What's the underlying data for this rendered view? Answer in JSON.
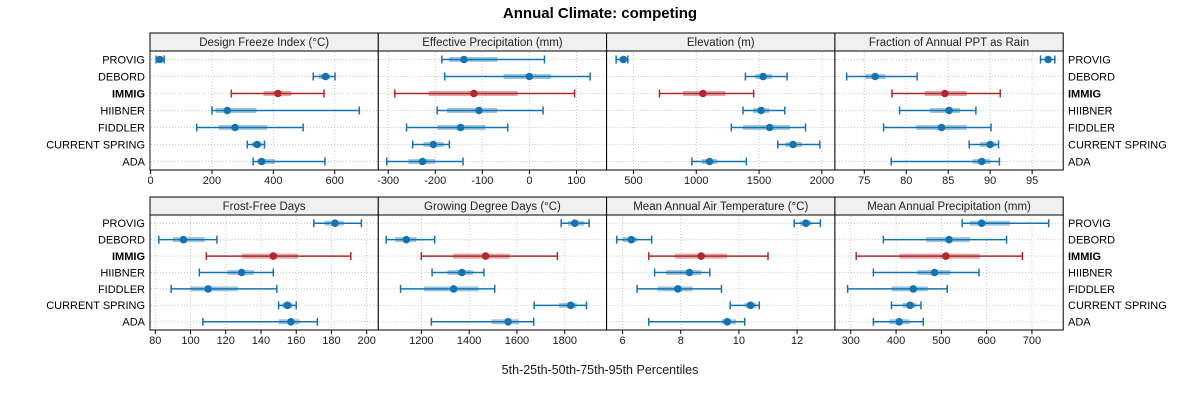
{
  "title": "Annual Climate: competing",
  "xlabel": "5th-25th-50th-75th-95th Percentiles",
  "categories": [
    "PROVIG",
    "DEBORD",
    "IMMIG",
    "HIIBNER",
    "FIDDLER",
    "CURRENT SPRING",
    "ADA"
  ],
  "highlight_category": "IMMIG",
  "colors": {
    "normal": "#1673B1",
    "highlight": "#B3262A",
    "band_opacity": 0.4,
    "strip_bg": "#f0f0f0",
    "panel_border": "#000000",
    "grid": "#c8c8c8",
    "text": "#1a1a1a"
  },
  "chart_data": [
    {
      "type": "dotplot-percentiles",
      "title": "Design Freeze Index (°C)",
      "row": 0,
      "col": 0,
      "xlim": [
        -2,
        742
      ],
      "ticks": [
        0,
        200,
        400,
        600
      ],
      "series": [
        {
          "name": "PROVIG",
          "p": [
            18,
            25,
            30,
            36,
            44
          ]
        },
        {
          "name": "DEBORD",
          "p": [
            530,
            549,
            570,
            585,
            601
          ]
        },
        {
          "name": "IMMIG",
          "p": [
            263,
            368,
            415,
            458,
            565
          ]
        },
        {
          "name": "HIIBNER",
          "p": [
            200,
            212,
            250,
            345,
            680
          ]
        },
        {
          "name": "FIDDLER",
          "p": [
            150,
            222,
            275,
            380,
            497
          ]
        },
        {
          "name": "CURRENT SPRING",
          "p": [
            315,
            330,
            347,
            362,
            371
          ]
        },
        {
          "name": "ADA",
          "p": [
            334,
            348,
            362,
            405,
            568
          ]
        }
      ]
    },
    {
      "type": "dotplot-percentiles",
      "title": "Effective Precipitation (mm)",
      "row": 0,
      "col": 1,
      "xlim": [
        -321,
        164
      ],
      "ticks": [
        -300,
        -200,
        -100,
        0,
        100
      ],
      "series": [
        {
          "name": "PROVIG",
          "p": [
            -186,
            -171,
            -139,
            -68,
            32
          ]
        },
        {
          "name": "DEBORD",
          "p": [
            -180,
            -55,
            0,
            46,
            129
          ]
        },
        {
          "name": "IMMIG",
          "p": [
            -286,
            -214,
            -118,
            -25,
            96
          ]
        },
        {
          "name": "HIIBNER",
          "p": [
            -196,
            -175,
            -107,
            -68,
            29
          ]
        },
        {
          "name": "FIDDLER",
          "p": [
            -261,
            -196,
            -146,
            -93,
            -46
          ]
        },
        {
          "name": "CURRENT SPRING",
          "p": [
            -248,
            -225,
            -204,
            -182,
            -170
          ]
        },
        {
          "name": "ADA",
          "p": [
            -303,
            -257,
            -227,
            -200,
            -141
          ]
        }
      ]
    },
    {
      "type": "dotplot-percentiles",
      "title": "Elevation (m)",
      "row": 0,
      "col": 2,
      "xlim": [
        286,
        2104
      ],
      "ticks": [
        500,
        1000,
        1500,
        2000
      ],
      "series": [
        {
          "name": "PROVIG",
          "p": [
            362,
            388,
            420,
            442,
            455
          ]
        },
        {
          "name": "DEBORD",
          "p": [
            1391,
            1471,
            1532,
            1604,
            1723
          ]
        },
        {
          "name": "IMMIG",
          "p": [
            707,
            894,
            1053,
            1231,
            1457
          ]
        },
        {
          "name": "HIIBNER",
          "p": [
            1372,
            1452,
            1516,
            1582,
            1705
          ]
        },
        {
          "name": "FIDDLER",
          "p": [
            1279,
            1372,
            1585,
            1745,
            1870
          ]
        },
        {
          "name": "CURRENT SPRING",
          "p": [
            1649,
            1710,
            1771,
            1843,
            1984
          ]
        },
        {
          "name": "ADA",
          "p": [
            965,
            1045,
            1106,
            1165,
            1399
          ]
        }
      ]
    },
    {
      "type": "dotplot-percentiles",
      "title": "Fraction of Annual PPT as Rain",
      "row": 0,
      "col": 3,
      "xlim": [
        71.5,
        98.7
      ],
      "ticks": [
        75,
        80,
        85,
        90,
        95
      ],
      "series": [
        {
          "name": "PROVIG",
          "p": [
            96.0,
            96.5,
            96.9,
            97.3,
            97.7
          ]
        },
        {
          "name": "DEBORD",
          "p": [
            72.9,
            75.1,
            76.3,
            77.5,
            81.3
          ]
        },
        {
          "name": "IMMIG",
          "p": [
            78.3,
            82.2,
            84.6,
            87.2,
            91.2
          ]
        },
        {
          "name": "HIIBNER",
          "p": [
            79.2,
            82.8,
            85.1,
            86.4,
            88.3
          ]
        },
        {
          "name": "FIDDLER",
          "p": [
            77.3,
            81.2,
            84.2,
            87.2,
            90.1
          ]
        },
        {
          "name": "CURRENT SPRING",
          "p": [
            87.5,
            88.8,
            90.0,
            90.7,
            91.0
          ]
        },
        {
          "name": "ADA",
          "p": [
            78.2,
            87.9,
            89.0,
            90.0,
            91.1
          ]
        }
      ]
    },
    {
      "type": "dotplot-percentiles",
      "title": "Frost-Free Days",
      "row": 1,
      "col": 0,
      "xlim": [
        77,
        206.6
      ],
      "ticks": [
        80,
        100,
        120,
        140,
        160,
        180,
        200
      ],
      "series": [
        {
          "name": "PROVIG",
          "p": [
            170,
            176,
            182,
            187,
            197
          ]
        },
        {
          "name": "DEBORD",
          "p": [
            82,
            90,
            96,
            108,
            115
          ]
        },
        {
          "name": "IMMIG",
          "p": [
            109,
            129,
            147,
            161,
            191
          ]
        },
        {
          "name": "HIIBNER",
          "p": [
            105,
            121,
            129,
            136,
            147
          ]
        },
        {
          "name": "FIDDLER",
          "p": [
            89,
            100,
            110,
            127,
            149
          ]
        },
        {
          "name": "CURRENT SPRING",
          "p": [
            150,
            152,
            155,
            158,
            160
          ]
        },
        {
          "name": "ADA",
          "p": [
            107,
            150,
            157,
            162,
            172
          ]
        }
      ]
    },
    {
      "type": "dotplot-percentiles",
      "title": "Growing Degree Days (°C)",
      "row": 1,
      "col": 1,
      "xlim": [
        1020,
        1975
      ],
      "ticks": [
        1200,
        1400,
        1600,
        1800
      ],
      "series": [
        {
          "name": "PROVIG",
          "p": [
            1785,
            1814,
            1842,
            1881,
            1902
          ]
        },
        {
          "name": "DEBORD",
          "p": [
            1053,
            1091,
            1137,
            1179,
            1256
          ]
        },
        {
          "name": "IMMIG",
          "p": [
            1200,
            1333,
            1469,
            1570,
            1769
          ]
        },
        {
          "name": "HIIBNER",
          "p": [
            1245,
            1309,
            1370,
            1416,
            1462
          ]
        },
        {
          "name": "FIDDLER",
          "p": [
            1113,
            1211,
            1335,
            1440,
            1507
          ]
        },
        {
          "name": "CURRENT SPRING",
          "p": [
            1672,
            1776,
            1825,
            1849,
            1891
          ]
        },
        {
          "name": "ADA",
          "p": [
            1242,
            1493,
            1563,
            1608,
            1670
          ]
        }
      ]
    },
    {
      "type": "dotplot-percentiles",
      "title": "Mean Annual Air Temperature (°C)",
      "row": 1,
      "col": 2,
      "xlim": [
        5.45,
        13.3
      ],
      "ticks": [
        6,
        8,
        10,
        12
      ],
      "series": [
        {
          "name": "PROVIG",
          "p": [
            11.9,
            12.1,
            12.3,
            12.5,
            12.8
          ]
        },
        {
          "name": "DEBORD",
          "p": [
            5.8,
            6.0,
            6.3,
            6.5,
            7.0
          ]
        },
        {
          "name": "IMMIG",
          "p": [
            6.9,
            7.8,
            8.7,
            9.6,
            11.0
          ]
        },
        {
          "name": "HIIBNER",
          "p": [
            7.1,
            7.5,
            8.3,
            8.7,
            9.0
          ]
        },
        {
          "name": "FIDDLER",
          "p": [
            6.5,
            7.2,
            7.9,
            8.4,
            9.4
          ]
        },
        {
          "name": "CURRENT SPRING",
          "p": [
            9.7,
            10.2,
            10.4,
            10.6,
            10.7
          ]
        },
        {
          "name": "ADA",
          "p": [
            6.9,
            9.4,
            9.6,
            9.9,
            10.2
          ]
        }
      ]
    },
    {
      "type": "dotplot-percentiles",
      "title": "Mean Annual Precipitation (mm)",
      "row": 1,
      "col": 3,
      "xlim": [
        265,
        769
      ],
      "ticks": [
        300,
        400,
        500,
        600,
        700
      ],
      "series": [
        {
          "name": "PROVIG",
          "p": [
            546,
            563,
            589,
            651,
            737
          ]
        },
        {
          "name": "DEBORD",
          "p": [
            372,
            466,
            517,
            563,
            644
          ]
        },
        {
          "name": "IMMIG",
          "p": [
            312,
            407,
            510,
            585,
            679
          ]
        },
        {
          "name": "HIIBNER",
          "p": [
            350,
            447,
            485,
            520,
            583
          ]
        },
        {
          "name": "FIDDLER",
          "p": [
            293,
            390,
            438,
            470,
            513
          ]
        },
        {
          "name": "CURRENT SPRING",
          "p": [
            390,
            415,
            431,
            444,
            455
          ]
        },
        {
          "name": "ADA",
          "p": [
            350,
            385,
            407,
            430,
            460
          ]
        }
      ]
    }
  ]
}
